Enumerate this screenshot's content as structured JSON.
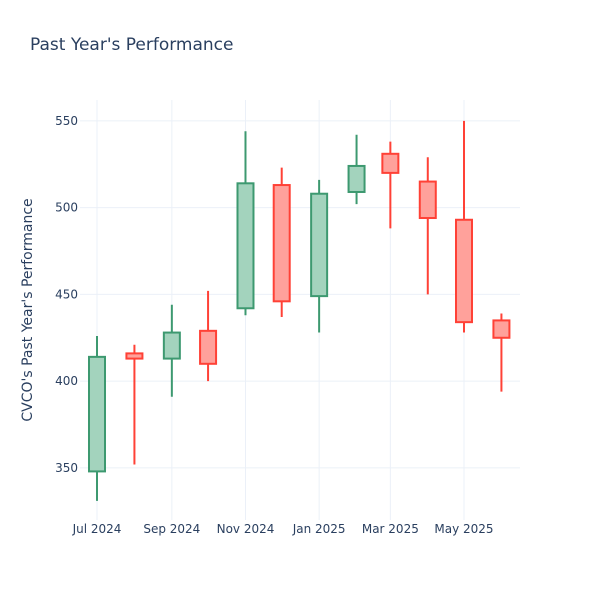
{
  "chart_data": {
    "type": "candlestick",
    "title": "Past Year's Performance",
    "xlabel": "",
    "ylabel": "CVCO's Past Year's Performance",
    "ylim": [
      320,
      562
    ],
    "yticks": [
      350,
      400,
      450,
      500,
      550
    ],
    "xticks": [
      "Jul 2024",
      "Sep 2024",
      "Nov 2024",
      "Jan 2025",
      "Mar 2025",
      "May 2025"
    ],
    "grid": true,
    "colors": {
      "increasing_line": "#3d9970",
      "increasing_fill": "#a3d3bd",
      "decreasing_line": "#ff4136",
      "decreasing_fill": "#ffa19b",
      "text": "#2a3f5f",
      "grid": "#ebf0f8"
    },
    "candles": [
      {
        "date": "2024-07-01",
        "open": 348,
        "high": 426,
        "low": 331,
        "close": 414
      },
      {
        "date": "2024-08-01",
        "open": 416,
        "high": 421,
        "low": 352,
        "close": 413
      },
      {
        "date": "2024-09-01",
        "open": 413,
        "high": 444,
        "low": 391,
        "close": 428
      },
      {
        "date": "2024-10-01",
        "open": 429,
        "high": 452,
        "low": 400,
        "close": 410
      },
      {
        "date": "2024-11-01",
        "open": 442,
        "high": 544,
        "low": 438,
        "close": 514
      },
      {
        "date": "2024-12-01",
        "open": 513,
        "high": 523,
        "low": 437,
        "close": 446
      },
      {
        "date": "2025-01-01",
        "open": 449,
        "high": 516,
        "low": 428,
        "close": 508
      },
      {
        "date": "2025-02-01",
        "open": 509,
        "high": 542,
        "low": 502,
        "close": 524
      },
      {
        "date": "2025-03-01",
        "open": 531,
        "high": 538,
        "low": 488,
        "close": 520
      },
      {
        "date": "2025-04-01",
        "open": 515,
        "high": 529,
        "low": 450,
        "close": 494
      },
      {
        "date": "2025-05-01",
        "open": 493,
        "high": 550,
        "low": 428,
        "close": 434
      },
      {
        "date": "2025-06-01",
        "open": 435,
        "high": 439,
        "low": 394,
        "close": 425
      }
    ]
  }
}
